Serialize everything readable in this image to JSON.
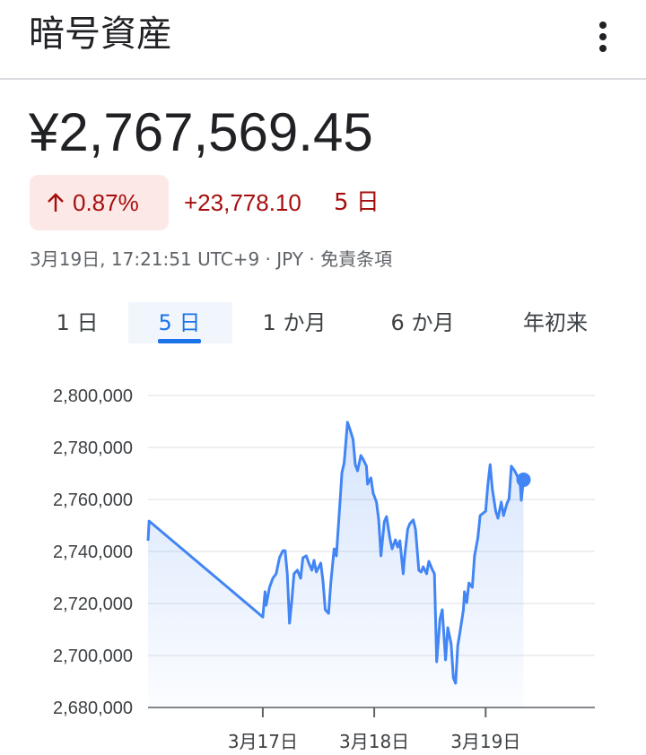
{
  "header": {
    "title": "暗号資産"
  },
  "quote": {
    "price": "¥2,767,569.45",
    "change_percent": "0.87%",
    "change_amount": "+23,778.10",
    "change_period": "5 日",
    "timestamp": "3月19日, 17:21:51 UTC+9 · JPY · 免責条項"
  },
  "tabs": {
    "items": [
      "1 日",
      "5 日",
      "1 か月",
      "6 か月",
      "年初来"
    ],
    "selected": 1
  },
  "chart_data": {
    "type": "line",
    "color": "#4285f4",
    "grid": true,
    "xlim": [
      15.97,
      19.98
    ],
    "xticks": [
      {
        "value": 17,
        "label": "3月17日"
      },
      {
        "value": 18,
        "label": "3月18日"
      },
      {
        "value": 19,
        "label": "3月19日"
      }
    ],
    "ylim": [
      2680000,
      2800000
    ],
    "yticks": [
      {
        "value": 2680000,
        "label": "2,680,000"
      },
      {
        "value": 2700000,
        "label": "2,700,000"
      },
      {
        "value": 2720000,
        "label": "2,720,000"
      },
      {
        "value": 2740000,
        "label": "2,740,000"
      },
      {
        "value": 2760000,
        "label": "2,760,000"
      },
      {
        "value": 2780000,
        "label": "2,780,000"
      },
      {
        "value": 2800000,
        "label": "2,800,000"
      }
    ],
    "x": [
      15.97,
      15.98,
      17.0,
      17.02,
      17.03,
      17.06,
      17.09,
      17.12,
      17.15,
      17.18,
      17.2,
      17.22,
      17.24,
      17.26,
      17.28,
      17.31,
      17.34,
      17.36,
      17.39,
      17.41,
      17.44,
      17.46,
      17.48,
      17.52,
      17.54,
      17.56,
      17.59,
      17.61,
      17.64,
      17.66,
      17.69,
      17.71,
      17.73,
      17.76,
      17.78,
      17.81,
      17.83,
      17.85,
      17.88,
      17.9,
      17.93,
      17.94,
      17.97,
      17.99,
      18.02,
      18.04,
      18.06,
      18.09,
      18.11,
      18.14,
      18.16,
      18.19,
      18.21,
      18.23,
      18.26,
      18.27,
      18.3,
      18.32,
      18.35,
      18.37,
      18.4,
      18.42,
      18.44,
      18.47,
      18.49,
      18.52,
      18.54,
      18.56,
      18.59,
      18.61,
      18.64,
      18.66,
      18.69,
      18.71,
      18.73,
      18.75,
      18.77,
      18.8,
      18.81,
      18.83,
      18.85,
      18.88,
      18.9,
      18.93,
      18.95,
      18.98,
      19.0,
      19.02,
      19.04,
      19.06,
      19.09,
      19.11,
      19.14,
      19.16,
      19.19,
      19.21,
      19.23,
      19.26,
      19.28,
      19.31,
      19.32,
      19.34
    ],
    "values": [
      2744100,
      2751700,
      2714800,
      2724500,
      2719300,
      2726200,
      2729700,
      2731400,
      2737600,
      2740300,
      2740300,
      2731400,
      2712400,
      2721000,
      2731400,
      2732800,
      2729700,
      2737600,
      2738300,
      2735900,
      2732800,
      2736600,
      2732100,
      2735500,
      2728600,
      2717600,
      2716200,
      2727900,
      2741000,
      2738300,
      2757200,
      2770300,
      2774100,
      2789700,
      2787200,
      2783100,
      2773400,
      2771000,
      2776900,
      2775500,
      2772800,
      2765900,
      2768300,
      2762400,
      2759000,
      2752100,
      2738300,
      2751400,
      2753400,
      2745200,
      2741000,
      2744500,
      2741700,
      2744100,
      2731400,
      2736900,
      2748600,
      2750700,
      2752100,
      2748600,
      2732800,
      2732100,
      2734100,
      2731400,
      2736200,
      2733100,
      2731400,
      2697600,
      2714100,
      2717600,
      2698300,
      2710700,
      2704500,
      2691400,
      2689300,
      2703800,
      2709000,
      2717600,
      2724500,
      2720300,
      2727900,
      2726200,
      2738300,
      2745200,
      2753800,
      2754800,
      2755500,
      2765900,
      2773400,
      2764100,
      2755500,
      2752800,
      2759000,
      2753800,
      2758300,
      2760300,
      2772800,
      2771000,
      2769300,
      2765900,
      2759700,
      2767569
    ]
  }
}
